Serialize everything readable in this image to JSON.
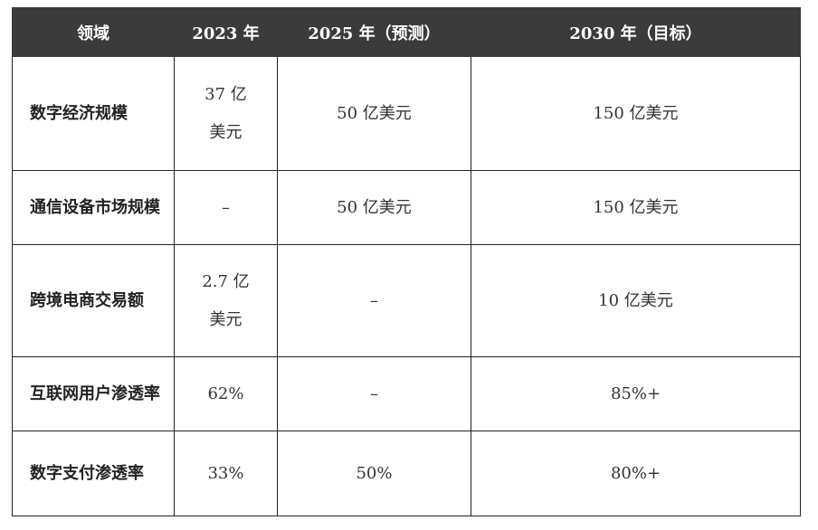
{
  "table": {
    "headers": [
      "领域",
      "2023 年",
      "2025 年（预测）",
      "2030 年（目标）"
    ],
    "rows": [
      [
        "数字经济规模",
        "37 亿美元",
        "50 亿美元",
        "150 亿美元"
      ],
      [
        "通信设备市场规模",
        "–",
        "50 亿美元",
        "150 亿美元"
      ],
      [
        "跨境电商交易额",
        "2.7 亿美元",
        "–",
        "10 亿美元"
      ],
      [
        "互联网用户渗透率",
        "62%",
        "–",
        "85%+"
      ],
      [
        "数字支付渗透率",
        "33%",
        "50%",
        "80%+"
      ]
    ]
  },
  "colors": {
    "header_bg": "#3b3b3b",
    "header_text": "#ffffff",
    "border": "#222222"
  }
}
